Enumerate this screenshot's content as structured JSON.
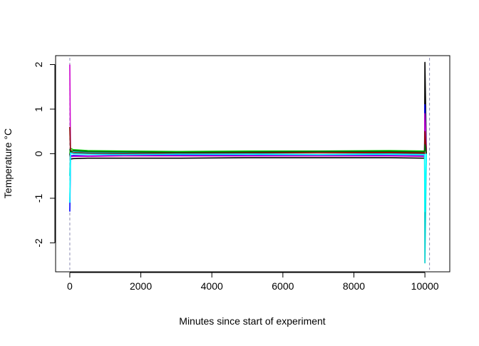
{
  "chart_data": {
    "type": "line",
    "title": "",
    "xlabel": "Minutes since start of experiment",
    "ylabel": "Temperature °C",
    "xlim": [
      -400,
      10700
    ],
    "ylim": [
      -2.65,
      2.2
    ],
    "x_ticks": [
      0,
      2000,
      4000,
      6000,
      8000,
      10000
    ],
    "x_tick_labels": [
      "0",
      "2000",
      "4000",
      "6000",
      "8000",
      "10000"
    ],
    "y_ticks": [
      -2,
      -1,
      0,
      1,
      2
    ],
    "y_tick_labels": [
      "-2",
      "-1",
      "0",
      "1",
      "2"
    ],
    "grid": false,
    "legend": "none",
    "reference_lines": [
      {
        "axis": "x",
        "value": 0,
        "style": "dashed",
        "color": "#8c8cb4"
      },
      {
        "axis": "x",
        "value": 10130,
        "style": "dashed",
        "color": "#8c8cb4"
      }
    ],
    "series": [
      {
        "color": "#000000",
        "x": [
          0,
          20,
          100,
          500,
          1500,
          3000,
          5000,
          7000,
          9000,
          9990,
          10000,
          10040
        ],
        "y": [
          0,
          -0.12,
          -0.11,
          -0.1,
          -0.1,
          -0.1,
          -0.09,
          -0.09,
          -0.09,
          -0.1,
          2.05,
          0
        ]
      },
      {
        "color": "#ff0000",
        "x": [
          0,
          20,
          100,
          500,
          1500,
          3000,
          5000,
          7000,
          9000,
          9990,
          10000,
          10040
        ],
        "y": [
          0,
          0.08,
          0.05,
          0.02,
          0.03,
          0.02,
          0.04,
          0.05,
          0.04,
          0.03,
          0.75,
          0
        ]
      },
      {
        "color": "#00cd00",
        "x": [
          0,
          20,
          100,
          500,
          1500,
          3000,
          5000,
          7000,
          9000,
          9990,
          10000,
          10040
        ],
        "y": [
          0,
          0.12,
          0.09,
          0.07,
          0.06,
          0.05,
          0.06,
          0.06,
          0.07,
          0.06,
          0.3,
          0
        ]
      },
      {
        "color": "#0000ff",
        "x": [
          0,
          20,
          100,
          500,
          1500,
          3000,
          5000,
          7000,
          9000,
          9990,
          10000,
          10040
        ],
        "y": [
          -1.3,
          -0.05,
          -0.04,
          -0.05,
          -0.04,
          -0.03,
          -0.04,
          -0.04,
          -0.04,
          -0.05,
          1.1,
          0
        ]
      },
      {
        "color": "#00cdcd",
        "x": [
          0,
          20,
          100,
          500,
          1500,
          3000,
          5000,
          7000,
          9000,
          9990,
          10000,
          10040
        ],
        "y": [
          -0.5,
          0.06,
          0.05,
          0.03,
          0.02,
          0.0,
          0.01,
          0.02,
          0.01,
          0.0,
          -2.45,
          0
        ]
      },
      {
        "color": "#cd00cd",
        "x": [
          0,
          20,
          100,
          500,
          1500,
          3000,
          5000,
          7000,
          9000,
          9990,
          10000,
          10040
        ],
        "y": [
          2.0,
          -0.07,
          -0.06,
          -0.06,
          -0.05,
          -0.05,
          -0.05,
          -0.05,
          -0.05,
          -0.06,
          0.9,
          0
        ]
      },
      {
        "color": "#8b0000",
        "x": [
          0,
          20,
          100,
          500,
          1500,
          3000,
          5000,
          7000,
          9000,
          9990,
          10000,
          10040
        ],
        "y": [
          0.6,
          0.03,
          0.02,
          0.01,
          0.0,
          0.01,
          0.02,
          0.02,
          0.02,
          0.01,
          0.5,
          0
        ]
      },
      {
        "color": "#006400",
        "x": [
          0,
          20,
          100,
          500,
          1500,
          3000,
          5000,
          7000,
          9000,
          9990,
          10000,
          10040
        ],
        "y": [
          0.1,
          0.04,
          0.07,
          0.05,
          0.04,
          0.03,
          0.04,
          0.05,
          0.05,
          0.04,
          0.2,
          0
        ]
      },
      {
        "color": "#00ffff",
        "x": [
          0,
          20,
          100,
          500,
          1500,
          3000,
          5000,
          7000,
          9000,
          9990,
          10000,
          10040
        ],
        "y": [
          -1.1,
          0.02,
          0.0,
          -0.01,
          -0.02,
          -0.01,
          -0.01,
          -0.02,
          -0.01,
          -0.02,
          -1.3,
          0
        ]
      }
    ]
  }
}
